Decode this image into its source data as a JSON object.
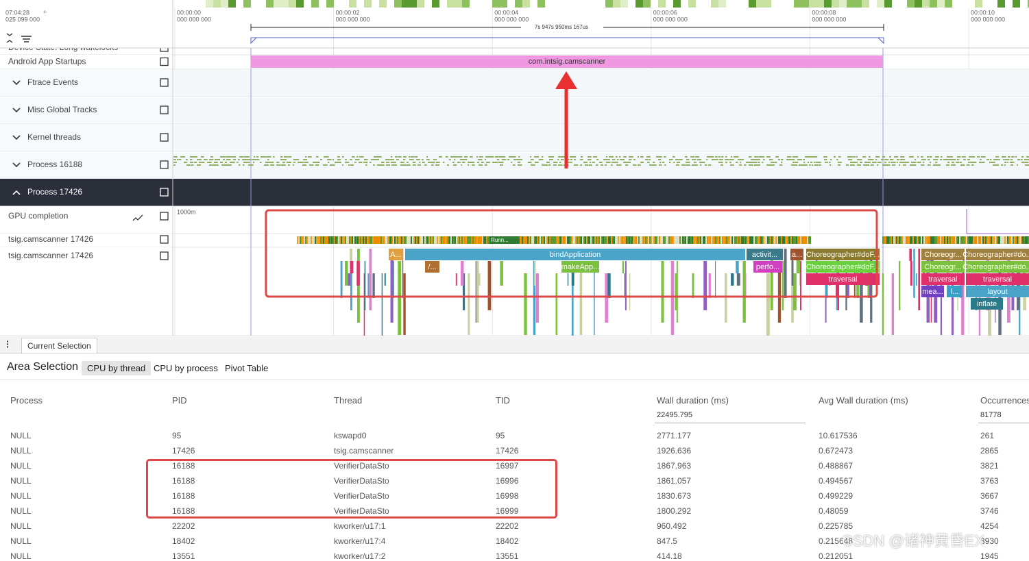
{
  "timeline": {
    "start_time": "07:04:28",
    "start_offset": "025 099 000",
    "add": "+",
    "ticks": [
      {
        "time": "00:00:00",
        "ns": "000 000 000"
      },
      {
        "time": "00:00:02",
        "ns": "000 000 000"
      },
      {
        "time": "00:00:04",
        "ns": "000 000 000"
      },
      {
        "time": "00:00:06",
        "ns": "000 000 000"
      },
      {
        "time": "00:00:08",
        "ns": "000 000 000"
      },
      {
        "time": "00:00:10",
        "ns": "000 000 000"
      }
    ],
    "selection": "7s 947s 950ms 167us"
  },
  "tracks": [
    "Device State: Long wakelocks",
    "Android App Startups",
    "Ftrace Events",
    "Misc Global Tracks",
    "Kernel threads",
    "Process 16188",
    "Process 17426",
    "GPU completion",
    "tsig.camscanner 17426",
    "tsig.camscanner 17426"
  ],
  "slices": {
    "startup": "com.intsig.camscanner",
    "gpu_scale": "1000m",
    "state": "Runn...",
    "row1": [
      "A...",
      "bindApplication",
      "activit...",
      "a...",
      "Choreographer#doF...",
      "Choreogr...",
      "Choreographer#do..."
    ],
    "row2": [
      "/...",
      "makeApp...",
      "perfo...",
      "Choreographer#doF...",
      "Choreogr...",
      "Choreographer#do..."
    ],
    "row3": [
      "traversal",
      "traversal",
      "traversal"
    ],
    "row4": [
      "mea...",
      "l...",
      "layout"
    ],
    "row5": [
      "inflate"
    ]
  },
  "panel": {
    "tab": "Current Selection",
    "title": "Area Selection",
    "subtabs": [
      "CPU by thread",
      "CPU by process",
      "Pivot Table"
    ]
  },
  "table": {
    "columns": [
      "Process",
      "PID",
      "Thread",
      "TID",
      "Wall duration (ms)",
      "Avg Wall duration (ms)",
      "Occurrences"
    ],
    "totals": {
      "wall": "22495.795",
      "occurrences": "81778"
    },
    "rows": [
      [
        "NULL",
        "95",
        "kswapd0",
        "95",
        "2771.177",
        "10.617536",
        "261"
      ],
      [
        "NULL",
        "17426",
        "tsig.camscanner",
        "17426",
        "1926.636",
        "0.672473",
        "2865"
      ],
      [
        "NULL",
        "16188",
        "VerifierDataSto",
        "16997",
        "1867.963",
        "0.488867",
        "3821"
      ],
      [
        "NULL",
        "16188",
        "VerifierDataSto",
        "16996",
        "1861.057",
        "0.494567",
        "3763"
      ],
      [
        "NULL",
        "16188",
        "VerifierDataSto",
        "16998",
        "1830.673",
        "0.499229",
        "3667"
      ],
      [
        "NULL",
        "16188",
        "VerifierDataSto",
        "16999",
        "1800.292",
        "0.48059",
        "3746"
      ],
      [
        "NULL",
        "22202",
        "kworker/u17:1",
        "22202",
        "960.492",
        "0.225785",
        "4254"
      ],
      [
        "NULL",
        "18402",
        "kworker/u17:4",
        "18402",
        "847.5",
        "0.215648",
        "3930"
      ],
      [
        "NULL",
        "13551",
        "kworker/u17:2",
        "13551",
        "414.18",
        "0.212051",
        "1945"
      ]
    ]
  },
  "watermark": "CSDN @诸神黄昏EX"
}
